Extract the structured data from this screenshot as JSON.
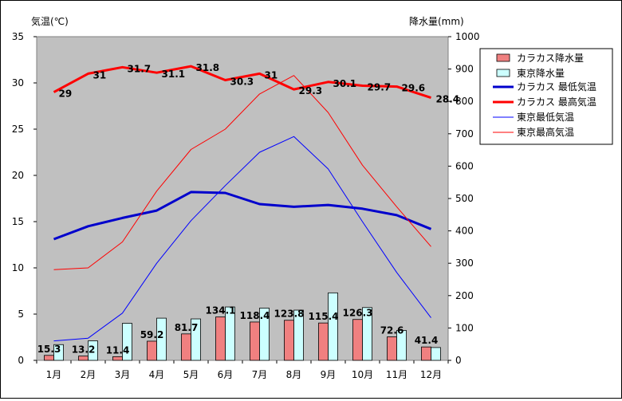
{
  "chart_data": {
    "type": "bar+line",
    "categories": [
      "1月",
      "2月",
      "3月",
      "4月",
      "5月",
      "6月",
      "7月",
      "8月",
      "9月",
      "10月",
      "11月",
      "12月"
    ],
    "left_axis": {
      "label": "気温(℃)",
      "range": [
        0,
        35
      ],
      "ticks": [
        0,
        5,
        10,
        15,
        20,
        25,
        30,
        35
      ]
    },
    "right_axis": {
      "label": "降水量(mm)",
      "range": [
        0,
        1000
      ],
      "ticks": [
        0,
        100,
        200,
        300,
        400,
        500,
        600,
        700,
        800,
        900,
        1000
      ]
    },
    "bar_series": [
      {
        "name": "カラカス降水量",
        "color": "#f08080",
        "axis": "right",
        "values": [
          15.3,
          13.2,
          11.4,
          59.2,
          81.7,
          134.1,
          118.4,
          123.8,
          115.4,
          126.3,
          72.6,
          41.4
        ],
        "labels": [
          "15.3",
          "13.2",
          "11.4",
          "59.2",
          "81.7",
          "134.1",
          "118.4",
          "123.8",
          "115.4",
          "126.3",
          "72.6",
          "41.4"
        ]
      },
      {
        "name": "東京降水量",
        "color": "#ccffff",
        "axis": "right",
        "values": [
          48.6,
          60.2,
          114.5,
          130.3,
          128.0,
          164.9,
          161.5,
          155.1,
          208.5,
          163.1,
          92.5,
          39.6
        ]
      }
    ],
    "line_series": [
      {
        "name": "カラカス 最低気温",
        "color": "#0000cc",
        "width": "thick",
        "axis": "left",
        "values": [
          13.1,
          14.5,
          15.4,
          16.2,
          18.2,
          18.1,
          16.9,
          16.6,
          16.8,
          16.4,
          15.7,
          14.2
        ]
      },
      {
        "name": "カラカス 最高気温",
        "color": "#ff0000",
        "width": "thick",
        "axis": "left",
        "values": [
          29,
          31,
          31.7,
          31.1,
          31.8,
          30.3,
          31,
          29.3,
          30.1,
          29.7,
          29.6,
          28.4
        ],
        "labels": [
          "29",
          "31",
          "31.7",
          "31.1",
          "31.8",
          "30.3",
          "31",
          "29.3",
          "30.1",
          "29.7",
          "29.6",
          "28.4"
        ]
      },
      {
        "name": "東京最低気温",
        "color": "#0000ff",
        "width": "thin",
        "axis": "left",
        "values": [
          2.1,
          2.4,
          5.1,
          10.5,
          15.1,
          18.9,
          22.5,
          24.2,
          20.7,
          15.0,
          9.5,
          4.6
        ]
      },
      {
        "name": "東京最高気温",
        "color": "#ff0000",
        "width": "thin",
        "axis": "left",
        "values": [
          9.8,
          10.0,
          12.8,
          18.3,
          22.8,
          25.0,
          28.8,
          30.8,
          26.8,
          21.1,
          16.6,
          12.3
        ]
      }
    ],
    "legend_position": "right"
  }
}
